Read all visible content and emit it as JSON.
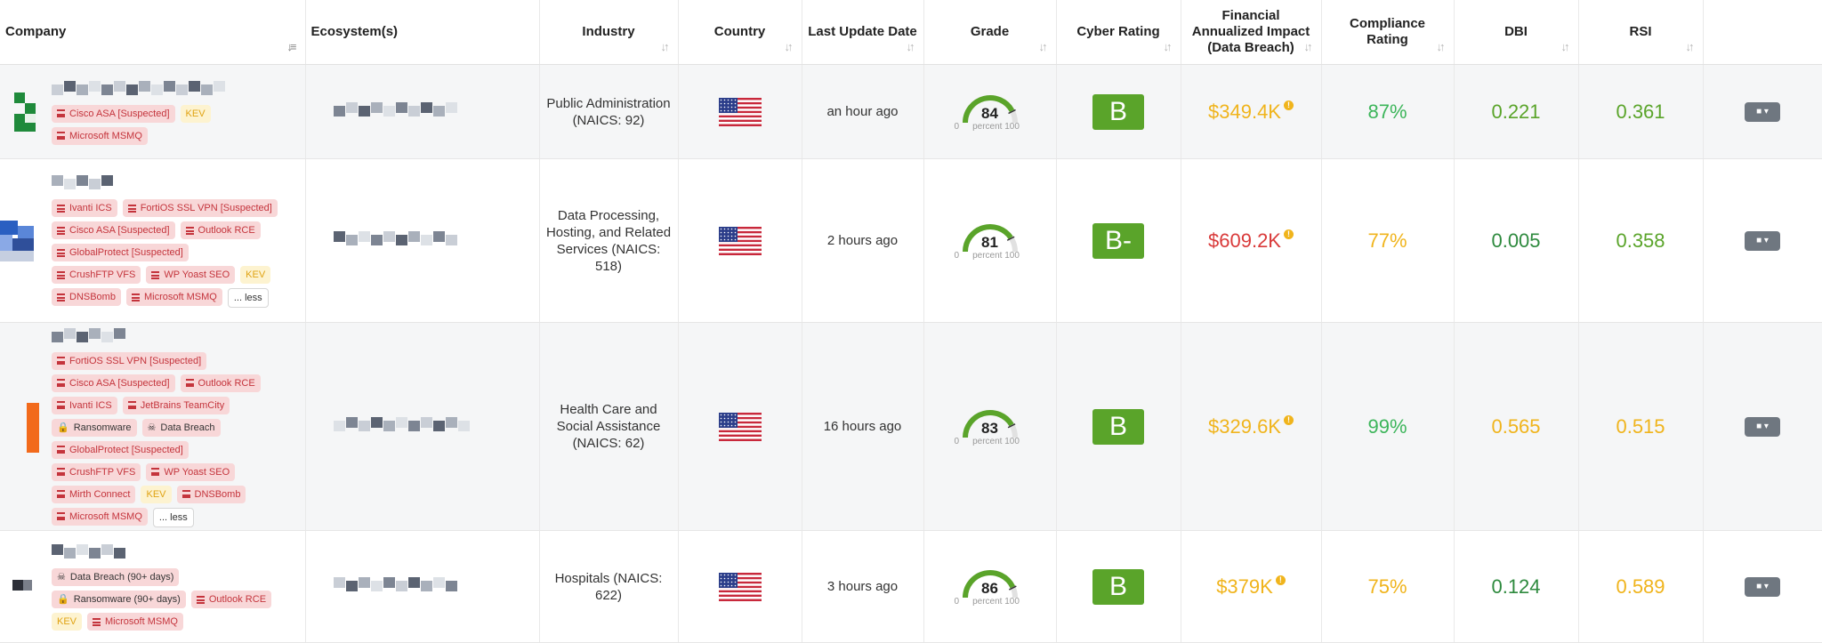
{
  "headers": {
    "company": "Company",
    "ecosystem": "Ecosystem(s)",
    "industry": "Industry",
    "country": "Country",
    "last_update": "Last Update Date",
    "grade": "Grade",
    "cyber_rating": "Cyber Rating",
    "financial_1": "Financial",
    "financial_2": "Annualized Impact",
    "financial_3": "(Data Breach)",
    "compliance_1": "Compliance",
    "compliance_2": "Rating",
    "dbi": "DBI",
    "rsi": "RSI"
  },
  "gauge_labels": {
    "min": "0",
    "max_label": "percent 100"
  },
  "colors": {
    "green": "#5aa42a",
    "yellow": "#f0b41c",
    "red": "#d93a3a",
    "dark_green": "#2e8a3e"
  },
  "rows": [
    {
      "tags": [
        {
          "type": "red",
          "text": "Cisco ASA [Suspected]"
        },
        {
          "type": "kev",
          "text": "KEV"
        },
        {
          "type": "red",
          "text": "Microsoft MSMQ"
        }
      ],
      "industry": "Public Administration (NAICS: 92)",
      "updated": "an hour ago",
      "grade": "84",
      "grade_value": 84,
      "rating": "B",
      "financial": "$349.4K",
      "financial_color": "#f0b41c",
      "compliance": "87%",
      "compliance_color": "#3cb55a",
      "dbi": "0.221",
      "dbi_color": "#5aa42a",
      "rsi": "0.361",
      "rsi_color": "#5aa42a"
    },
    {
      "tags": [
        {
          "type": "red",
          "text": "Ivanti ICS"
        },
        {
          "type": "red",
          "text": "FortiOS SSL VPN [Suspected]"
        },
        {
          "type": "red",
          "text": "Cisco ASA [Suspected]"
        },
        {
          "type": "red",
          "text": "Outlook RCE"
        },
        {
          "type": "red",
          "text": "GlobalProtect [Suspected]"
        },
        {
          "type": "red",
          "text": "CrushFTP VFS"
        },
        {
          "type": "red",
          "text": "WP Yoast SEO"
        },
        {
          "type": "kev",
          "text": "KEV"
        },
        {
          "type": "red",
          "text": "DNSBomb"
        },
        {
          "type": "red",
          "text": "Microsoft MSMQ"
        },
        {
          "type": "more",
          "text": "... less"
        }
      ],
      "industry": "Data Processing, Hosting, and Related Services (NAICS: 518)",
      "updated": "2 hours ago",
      "grade": "81",
      "grade_value": 81,
      "rating": "B-",
      "financial": "$609.2K",
      "financial_color": "#d93a3a",
      "compliance": "77%",
      "compliance_color": "#f0b41c",
      "dbi": "0.005",
      "dbi_color": "#2e8a3e",
      "rsi": "0.358",
      "rsi_color": "#5aa42a"
    },
    {
      "tags": [
        {
          "type": "red",
          "text": "FortiOS SSL VPN [Suspected]"
        },
        {
          "type": "red",
          "text": "Cisco ASA [Suspected]"
        },
        {
          "type": "red",
          "text": "Outlook RCE"
        },
        {
          "type": "red",
          "text": "Ivanti ICS"
        },
        {
          "type": "red",
          "text": "JetBrains TeamCity"
        },
        {
          "type": "lock",
          "text": "Ransomware"
        },
        {
          "type": "bug",
          "text": "Data Breach"
        },
        {
          "type": "red",
          "text": "GlobalProtect [Suspected]"
        },
        {
          "type": "red",
          "text": "CrushFTP VFS"
        },
        {
          "type": "red",
          "text": "WP Yoast SEO"
        },
        {
          "type": "red",
          "text": "Mirth Connect"
        },
        {
          "type": "kev",
          "text": "KEV"
        },
        {
          "type": "red",
          "text": "DNSBomb"
        },
        {
          "type": "red",
          "text": "Microsoft MSMQ"
        },
        {
          "type": "more",
          "text": "... less"
        }
      ],
      "industry": "Health Care and Social Assistance (NAICS: 62)",
      "updated": "16 hours ago",
      "grade": "83",
      "grade_value": 83,
      "rating": "B",
      "financial": "$329.6K",
      "financial_color": "#f0b41c",
      "compliance": "99%",
      "compliance_color": "#3cb55a",
      "dbi": "0.565",
      "dbi_color": "#f0b41c",
      "rsi": "0.515",
      "rsi_color": "#f0b41c"
    },
    {
      "tags": [
        {
          "type": "bug",
          "text": "Data Breach (90+ days)"
        },
        {
          "type": "lock",
          "text": "Ransomware (90+ days)"
        },
        {
          "type": "red",
          "text": "Outlook RCE"
        },
        {
          "type": "kev",
          "text": "KEV"
        },
        {
          "type": "red",
          "text": "Microsoft MSMQ"
        }
      ],
      "industry": "Hospitals (NAICS: 622)",
      "updated": "3 hours ago",
      "grade": "86",
      "grade_value": 86,
      "rating": "B",
      "financial": "$379K",
      "financial_color": "#f0b41c",
      "compliance": "75%",
      "compliance_color": "#f0b41c",
      "dbi": "0.124",
      "dbi_color": "#2e8a3e",
      "rsi": "0.589",
      "rsi_color": "#f0b41c"
    }
  ]
}
